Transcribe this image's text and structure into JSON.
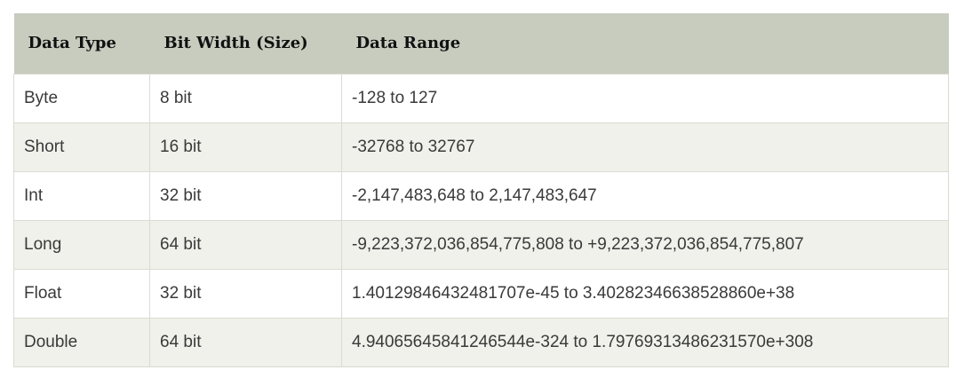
{
  "table": {
    "headers": [
      "Data Type",
      "Bit Width (Size)",
      "Data Range"
    ],
    "rows": [
      [
        "Byte",
        "8 bit",
        "-128 to 127"
      ],
      [
        "Short",
        "16 bit",
        "-32768 to 32767"
      ],
      [
        "Int",
        "32 bit",
        "-2,147,483,648 to 2,147,483,647"
      ],
      [
        "Long",
        "64 bit",
        "-9,223,372,036,854,775,808 to +9,223,372,036,854,775,807"
      ],
      [
        "Float",
        "32 bit",
        "1.40129846432481707e-45 to 3.40282346638528860e+38"
      ],
      [
        "Double",
        "64 bit",
        "4.94065645841246544e-324 to 1.79769313486231570e+308"
      ]
    ]
  },
  "colors": {
    "header_bg": "#c8ccbf",
    "row_odd_bg": "#ffffff",
    "row_even_bg": "#eff1ea",
    "border": "#d9dcd3"
  }
}
